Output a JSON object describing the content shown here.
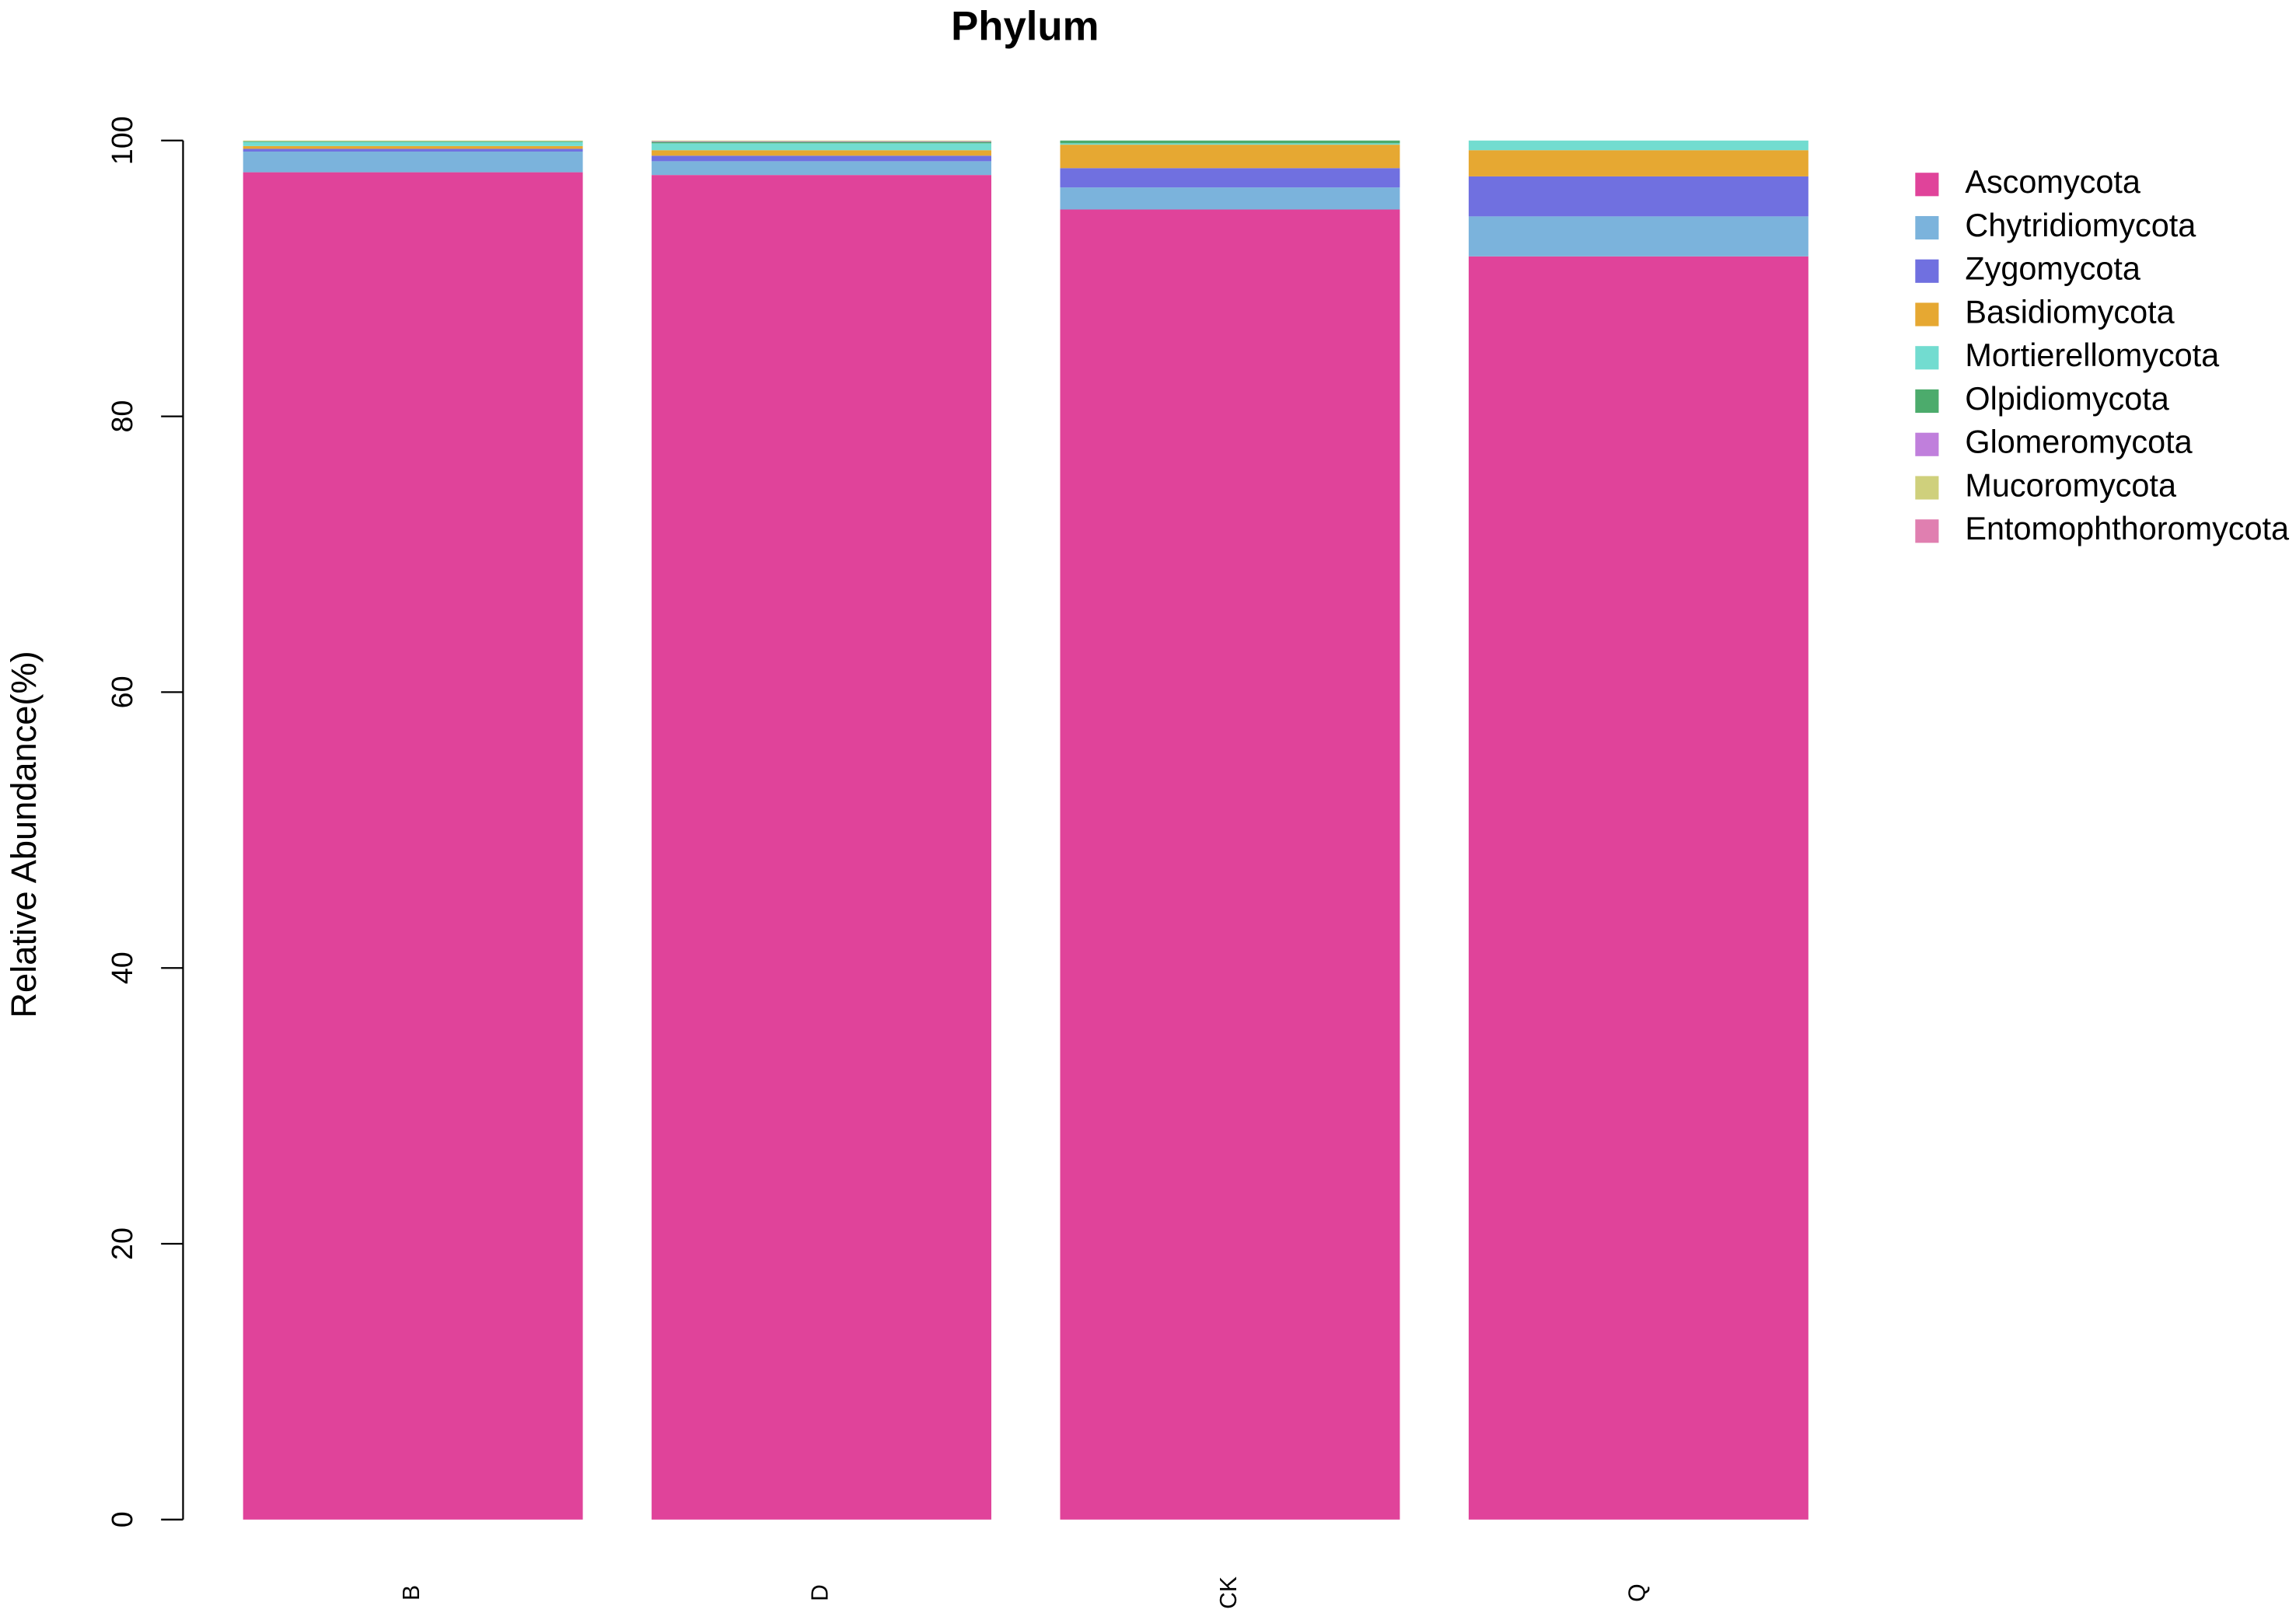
{
  "chart_data": {
    "type": "stacked-bar",
    "title": "Phylum",
    "y_label": "Relative Abundance(%)",
    "categories": [
      "B",
      "D",
      "CK",
      "Q"
    ],
    "ylim": [
      0,
      100
    ],
    "yticks": [
      0,
      20,
      40,
      60,
      80,
      100
    ],
    "grid": false,
    "legend_position": "right",
    "series": [
      {
        "name": "Ascomycota",
        "color": "#e0439a",
        "values": [
          97.7,
          97.5,
          95.0,
          91.6
        ]
      },
      {
        "name": "Chytridiomycota",
        "color": "#7bb3dc",
        "values": [
          1.5,
          1.0,
          1.6,
          2.9
        ]
      },
      {
        "name": "Zygomycota",
        "color": "#7070e0",
        "values": [
          0.2,
          0.4,
          1.4,
          2.9
        ]
      },
      {
        "name": "Basidiomycota",
        "color": "#e6a832",
        "values": [
          0.2,
          0.4,
          1.7,
          1.9
        ]
      },
      {
        "name": "Mortierellomycota",
        "color": "#72dcd0",
        "values": [
          0.3,
          0.5,
          0.1,
          0.7
        ]
      },
      {
        "name": "Olpidiomycota",
        "color": "#4cab6c",
        "values": [
          0.05,
          0.1,
          0.2,
          0.0
        ]
      },
      {
        "name": "Glomeromycota",
        "color": "#c07fdc",
        "values": [
          0.0,
          0.05,
          0.0,
          0.0
        ]
      },
      {
        "name": "Mucoromycota",
        "color": "#cfd07c",
        "values": [
          0.05,
          0.05,
          0.0,
          0.0
        ]
      },
      {
        "name": "Entomophthoromycota",
        "color": "#e07fb0",
        "values": [
          0.0,
          0.0,
          0.0,
          0.0
        ]
      }
    ]
  }
}
